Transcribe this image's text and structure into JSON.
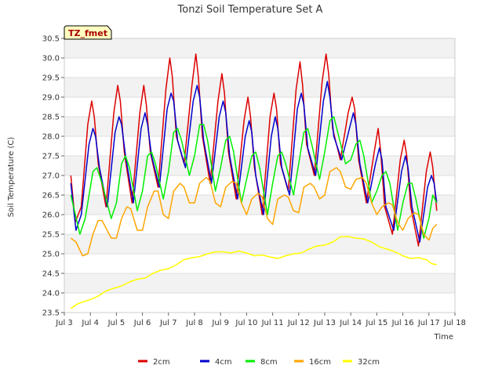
{
  "chart_data": {
    "type": "line",
    "title": "Tonzi Soil Temperature Set A",
    "xlabel": "Time",
    "ylabel": "Soil Temperature (C)",
    "annotation": "TZ_fmet",
    "xlim": [
      3,
      18
    ],
    "ylim": [
      23.5,
      30.5
    ],
    "x_ticks": [
      3,
      4,
      5,
      6,
      7,
      8,
      9,
      10,
      11,
      12,
      13,
      14,
      15,
      16,
      17,
      18
    ],
    "x_tick_labels": [
      "Jul 3",
      "Jul 4",
      "Jul 5",
      "Jul 6",
      "Jul 7",
      "Jul 8",
      "Jul 9",
      "Jul 10",
      "Jul 11",
      "Jul 12",
      "Jul 13",
      "Jul 14",
      "Jul 15",
      "Jul 16",
      "Jul 17",
      "Jul 18"
    ],
    "y_ticks": [
      23.5,
      24.0,
      24.5,
      25.0,
      25.5,
      26.0,
      26.5,
      27.0,
      27.5,
      28.0,
      28.5,
      29.0,
      29.5,
      30.0,
      30.5
    ],
    "y_tick_labels": [
      "23.5",
      "24.0",
      "24.5",
      "25.0",
      "25.5",
      "26.0",
      "26.5",
      "27.0",
      "27.5",
      "28.0",
      "28.5",
      "29.0",
      "29.5",
      "30.0",
      "30.5"
    ],
    "grid": "horizontal-bands",
    "legend_position": "bottom",
    "series": [
      {
        "name": "2cm",
        "color": "#dd0000",
        "x": [
          3.25,
          3.42,
          3.65,
          3.9,
          4.05,
          4.15,
          4.3,
          4.6,
          4.9,
          5.05,
          5.15,
          5.3,
          5.6,
          5.9,
          6.05,
          6.15,
          6.3,
          6.6,
          6.9,
          7.05,
          7.15,
          7.3,
          7.6,
          7.9,
          8.05,
          8.15,
          8.3,
          8.6,
          8.9,
          9.05,
          9.15,
          9.3,
          9.6,
          9.9,
          10.05,
          10.15,
          10.3,
          10.6,
          10.9,
          11.05,
          11.15,
          11.3,
          11.6,
          11.9,
          12.05,
          12.15,
          12.3,
          12.6,
          12.9,
          13.05,
          13.15,
          13.3,
          13.6,
          13.9,
          14.05,
          14.15,
          14.3,
          14.6,
          14.9,
          15.05,
          15.15,
          15.3,
          15.6,
          15.9,
          16.05,
          16.15,
          16.3,
          16.6,
          16.9,
          17.05,
          17.15,
          17.3
        ],
        "y": [
          27.0,
          25.8,
          26.2,
          28.3,
          28.9,
          28.5,
          27.3,
          26.2,
          28.6,
          29.3,
          28.9,
          27.6,
          26.3,
          28.6,
          29.3,
          28.8,
          27.6,
          26.7,
          29.2,
          30.0,
          29.5,
          28.0,
          27.3,
          29.3,
          30.1,
          29.5,
          28.0,
          26.8,
          28.9,
          29.6,
          29.1,
          27.6,
          26.4,
          28.4,
          29.0,
          28.5,
          27.2,
          26.0,
          28.5,
          29.1,
          28.7,
          27.3,
          26.6,
          29.2,
          29.9,
          29.3,
          27.8,
          27.0,
          29.4,
          30.1,
          29.6,
          28.2,
          27.4,
          28.6,
          29.0,
          28.7,
          27.4,
          26.3,
          27.6,
          28.2,
          27.6,
          26.2,
          25.5,
          27.4,
          27.9,
          27.5,
          26.2,
          25.2,
          27.1,
          27.6,
          27.2,
          26.1
        ]
      },
      {
        "name": "4cm",
        "color": "#0000cc",
        "x": [
          3.25,
          3.45,
          3.65,
          3.95,
          4.1,
          4.2,
          4.35,
          4.65,
          4.95,
          5.1,
          5.2,
          5.35,
          5.65,
          5.95,
          6.1,
          6.2,
          6.35,
          6.65,
          6.95,
          7.1,
          7.2,
          7.35,
          7.65,
          7.95,
          8.1,
          8.2,
          8.35,
          8.65,
          8.95,
          9.1,
          9.2,
          9.35,
          9.65,
          9.95,
          10.1,
          10.2,
          10.35,
          10.65,
          10.95,
          11.1,
          11.2,
          11.35,
          11.65,
          11.95,
          12.1,
          12.2,
          12.35,
          12.65,
          12.95,
          13.1,
          13.2,
          13.35,
          13.65,
          13.95,
          14.1,
          14.2,
          14.35,
          14.65,
          14.95,
          15.1,
          15.2,
          15.35,
          15.65,
          15.95,
          16.1,
          16.2,
          16.35,
          16.65,
          16.95,
          17.1,
          17.2,
          17.3
        ],
        "y": [
          26.8,
          25.6,
          26.0,
          27.8,
          28.2,
          28.0,
          27.2,
          26.2,
          28.1,
          28.5,
          28.3,
          27.5,
          26.3,
          28.2,
          28.6,
          28.3,
          27.5,
          26.7,
          28.7,
          29.1,
          28.9,
          27.9,
          27.2,
          28.9,
          29.3,
          29.0,
          27.9,
          26.8,
          28.5,
          28.9,
          28.6,
          27.5,
          26.4,
          28.0,
          28.4,
          28.1,
          27.0,
          26.0,
          28.0,
          28.5,
          28.2,
          27.2,
          26.5,
          28.7,
          29.1,
          28.8,
          27.7,
          27.0,
          28.9,
          29.4,
          29.0,
          28.0,
          27.4,
          28.2,
          28.6,
          28.3,
          27.3,
          26.3,
          27.3,
          27.7,
          27.4,
          26.2,
          25.6,
          27.1,
          27.5,
          27.2,
          26.2,
          25.3,
          26.7,
          27.0,
          26.8,
          26.3
        ]
      },
      {
        "name": "8cm",
        "color": "#00ee00",
        "x": [
          3.25,
          3.6,
          3.8,
          4.1,
          4.25,
          4.45,
          4.8,
          5.0,
          5.2,
          5.35,
          5.5,
          5.8,
          6.0,
          6.2,
          6.35,
          6.5,
          6.8,
          7.0,
          7.2,
          7.35,
          7.5,
          7.8,
          8.0,
          8.2,
          8.35,
          8.5,
          8.8,
          9.0,
          9.2,
          9.35,
          9.5,
          9.8,
          10.0,
          10.2,
          10.35,
          10.5,
          10.8,
          11.0,
          11.2,
          11.35,
          11.5,
          11.8,
          12.0,
          12.2,
          12.35,
          12.5,
          12.8,
          13.0,
          13.2,
          13.35,
          13.5,
          13.8,
          14.0,
          14.2,
          14.35,
          14.5,
          14.8,
          15.0,
          15.2,
          15.35,
          15.5,
          15.8,
          16.0,
          16.2,
          16.35,
          16.5,
          16.8,
          17.0,
          17.15,
          17.3
        ],
        "y": [
          26.5,
          25.5,
          25.9,
          27.1,
          27.2,
          26.8,
          25.9,
          26.3,
          27.3,
          27.5,
          27.2,
          26.1,
          26.6,
          27.5,
          27.6,
          27.3,
          26.4,
          27.1,
          28.1,
          28.2,
          27.9,
          27.0,
          27.5,
          28.3,
          28.3,
          27.9,
          26.6,
          27.2,
          27.9,
          28.0,
          27.6,
          26.3,
          26.9,
          27.5,
          27.6,
          27.2,
          26.0,
          26.8,
          27.5,
          27.6,
          27.3,
          26.5,
          27.3,
          28.1,
          28.2,
          27.8,
          26.9,
          27.6,
          28.4,
          28.5,
          28.1,
          27.3,
          27.4,
          27.8,
          27.9,
          27.5,
          26.3,
          26.6,
          27.0,
          27.1,
          26.8,
          25.6,
          26.3,
          26.8,
          26.8,
          26.4,
          25.4,
          25.9,
          26.5,
          26.3
        ]
      },
      {
        "name": "16cm",
        "color": "#ffa500",
        "x": [
          3.25,
          3.45,
          3.7,
          3.9,
          4.1,
          4.3,
          4.45,
          4.8,
          5.0,
          5.2,
          5.4,
          5.55,
          5.8,
          6.0,
          6.2,
          6.45,
          6.6,
          6.8,
          7.0,
          7.2,
          7.45,
          7.6,
          7.8,
          8.0,
          8.2,
          8.45,
          8.6,
          8.8,
          9.0,
          9.2,
          9.45,
          9.6,
          9.8,
          10.0,
          10.2,
          10.45,
          10.6,
          10.8,
          11.0,
          11.2,
          11.45,
          11.6,
          11.8,
          12.0,
          12.2,
          12.45,
          12.6,
          12.8,
          13.0,
          13.2,
          13.45,
          13.6,
          13.8,
          14.0,
          14.2,
          14.45,
          14.6,
          14.8,
          15.0,
          15.2,
          15.45,
          15.6,
          15.8,
          16.0,
          16.2,
          16.45,
          16.6,
          16.8,
          17.0,
          17.15,
          17.3
        ],
        "y": [
          25.4,
          25.3,
          24.95,
          25.0,
          25.5,
          25.85,
          25.85,
          25.4,
          25.4,
          25.9,
          26.2,
          26.15,
          25.6,
          25.6,
          26.2,
          26.6,
          26.6,
          26.0,
          25.9,
          26.6,
          26.8,
          26.7,
          26.3,
          26.3,
          26.8,
          26.95,
          26.85,
          26.3,
          26.2,
          26.7,
          26.85,
          26.8,
          26.3,
          26.0,
          26.4,
          26.55,
          26.45,
          25.9,
          25.75,
          26.4,
          26.5,
          26.45,
          26.1,
          26.05,
          26.7,
          26.8,
          26.7,
          26.4,
          26.5,
          27.1,
          27.2,
          27.1,
          26.7,
          26.65,
          26.9,
          26.95,
          26.8,
          26.3,
          26.0,
          26.2,
          26.3,
          26.25,
          25.8,
          25.6,
          25.9,
          26.05,
          26.0,
          25.5,
          25.35,
          25.65,
          25.75
        ]
      },
      {
        "name": "32cm",
        "color": "#ffff00",
        "x": [
          3.25,
          3.5,
          3.75,
          4.0,
          4.3,
          4.6,
          4.9,
          5.2,
          5.5,
          5.8,
          6.1,
          6.4,
          6.7,
          7.0,
          7.3,
          7.6,
          7.9,
          8.2,
          8.5,
          8.8,
          9.1,
          9.4,
          9.7,
          10.0,
          10.3,
          10.6,
          10.9,
          11.2,
          11.5,
          11.8,
          12.1,
          12.4,
          12.7,
          13.0,
          13.3,
          13.6,
          13.9,
          14.2,
          14.5,
          14.8,
          15.1,
          15.4,
          15.7,
          16.0,
          16.3,
          16.6,
          16.9,
          17.1,
          17.3
        ],
        "y": [
          23.6,
          23.72,
          23.78,
          23.83,
          23.92,
          24.05,
          24.12,
          24.18,
          24.28,
          24.35,
          24.38,
          24.5,
          24.58,
          24.62,
          24.72,
          24.85,
          24.9,
          24.93,
          25.0,
          25.05,
          25.05,
          25.02,
          25.07,
          25.02,
          24.95,
          24.97,
          24.92,
          24.88,
          24.95,
          25.0,
          25.02,
          25.12,
          25.2,
          25.22,
          25.3,
          25.43,
          25.44,
          25.4,
          25.38,
          25.3,
          25.18,
          25.12,
          25.05,
          24.95,
          24.88,
          24.9,
          24.85,
          24.75,
          24.72
        ]
      }
    ]
  }
}
